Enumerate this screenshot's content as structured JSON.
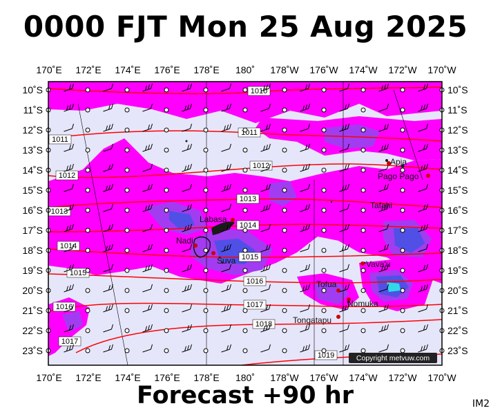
{
  "title": "0000 FJT Mon 25 Aug 2025",
  "footer": "Forecast +90 hr",
  "image_code": "IM2",
  "copyright": "Copyright metvuw.com",
  "colors": {
    "background_field": "#e6e6fb",
    "moisture_light": "#ff00ff",
    "moisture_medium": "#a23cf0",
    "moisture_heavy": "#5050e6",
    "moisture_peak": "#30d8e8",
    "isobar": "#ff0000",
    "land": "#222222",
    "town_marker": "#cc0000"
  },
  "lon_labels": [
    "170˚E",
    "172˚E",
    "174˚E",
    "176˚E",
    "178˚E",
    "180˚",
    "178˚W",
    "176˚W",
    "174˚W",
    "172˚W",
    "170˚W"
  ],
  "lat_labels": [
    "10˚S",
    "11˚S",
    "12˚S",
    "13˚S",
    "14˚S",
    "15˚S",
    "16˚S",
    "17˚S",
    "18˚S",
    "19˚S",
    "20˚S",
    "21˚S",
    "22˚S",
    "23˚S"
  ],
  "isobar_labels": [
    "1010",
    "1011",
    "1011",
    "1012",
    "1012",
    "1013",
    "1013",
    "1014",
    "1014",
    "1015",
    "1015",
    "1016",
    "1016",
    "1017",
    "1017",
    "1018",
    "1019"
  ],
  "places": [
    "Apia",
    "Pago Pago",
    "Tafahi",
    "Labasa",
    "Nadi",
    "Suva",
    "Vava'u",
    "Tofua",
    "Nomuka",
    "Tongatapu"
  ],
  "icons": [
    "wind-barb-icon",
    "calm-circle-icon",
    "town-marker-icon"
  ]
}
